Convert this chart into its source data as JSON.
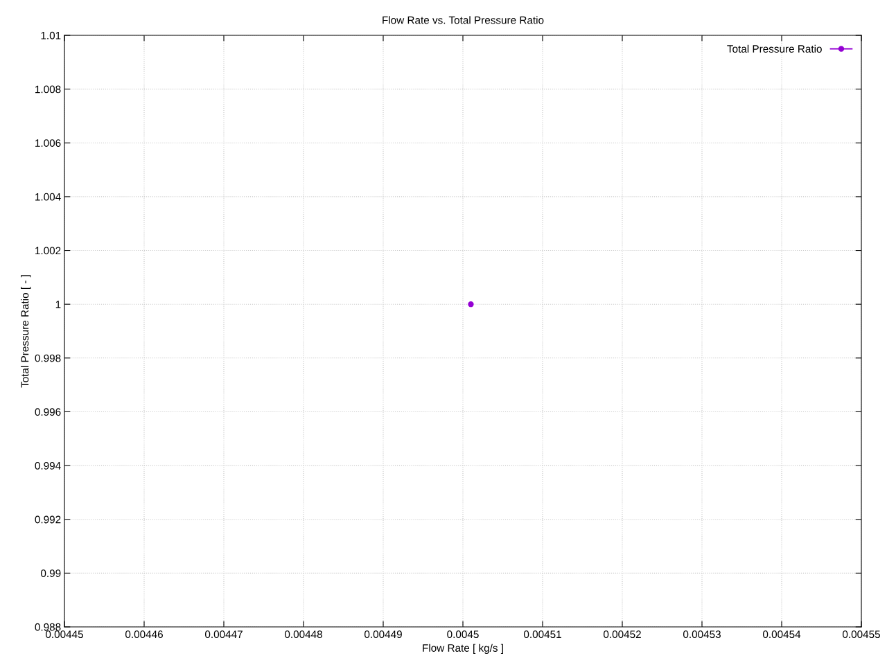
{
  "chart_data": {
    "type": "line",
    "title": "Flow Rate vs. Total Pressure Ratio",
    "xlabel": "Flow Rate [ kg/s ]",
    "ylabel": "Total Pressure Ratio [ - ]",
    "series": [
      {
        "name": "Total Pressure Ratio",
        "color": "#9400d3",
        "x": [
          0.004501
        ],
        "values": [
          1.0
        ]
      }
    ],
    "xlim": [
      0.00445,
      0.00455
    ],
    "xticks": [
      0.00445,
      0.00446,
      0.00447,
      0.00448,
      0.00449,
      0.0045,
      0.00451,
      0.00452,
      0.00453,
      0.00454,
      0.00455
    ],
    "ylim": [
      0.988,
      1.01
    ],
    "yticks": [
      0.988,
      0.99,
      0.992,
      0.994,
      0.996,
      0.998,
      1,
      1.002,
      1.004,
      1.006,
      1.008,
      1.01
    ],
    "grid": true,
    "legend": "top right",
    "marker": "circle",
    "line_style": "solid"
  }
}
